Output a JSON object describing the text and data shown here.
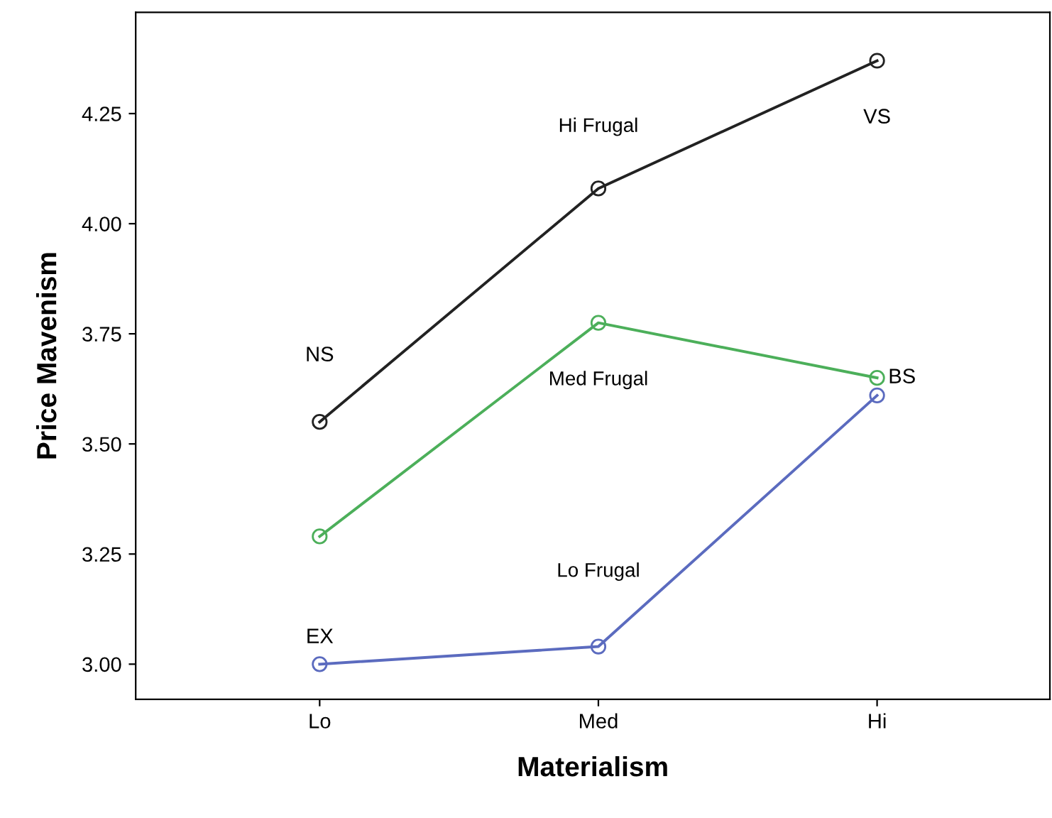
{
  "chart_data": {
    "type": "line",
    "xlabel": "Materialism",
    "ylabel": "Price Mavenism",
    "categories": [
      "Lo",
      "Med",
      "Hi"
    ],
    "series": [
      {
        "name": "Hi Frugal",
        "color": "#222222",
        "values": [
          3.55,
          4.08,
          4.37
        ]
      },
      {
        "name": "Med Frugal",
        "color": "#4caf5a",
        "values": [
          3.29,
          3.775,
          3.65
        ]
      },
      {
        "name": "Lo Frugal",
        "color": "#5b6bbf",
        "values": [
          3.0,
          3.04,
          3.61
        ]
      }
    ],
    "annotations": [
      {
        "text": "NS",
        "x": "Lo",
        "y": 3.55
      },
      {
        "text": "EX",
        "x": "Lo",
        "y": 3.0
      },
      {
        "text": "VS",
        "x": "Hi",
        "y": 4.37
      },
      {
        "text": "BS",
        "x": "Hi",
        "y": 3.65
      }
    ],
    "ylim": [
      2.92,
      4.48
    ],
    "yticks": [
      {
        "value": 3.0,
        "label": "3.00"
      },
      {
        "value": 3.25,
        "label": "3.25"
      },
      {
        "value": 3.5,
        "label": "3.50"
      },
      {
        "value": 3.75,
        "label": "3.75"
      },
      {
        "value": 4.0,
        "label": "4.00"
      },
      {
        "value": 4.25,
        "label": "4.25"
      }
    ],
    "marker": "circle",
    "line_style": "solid",
    "grid": false,
    "legend": false
  }
}
